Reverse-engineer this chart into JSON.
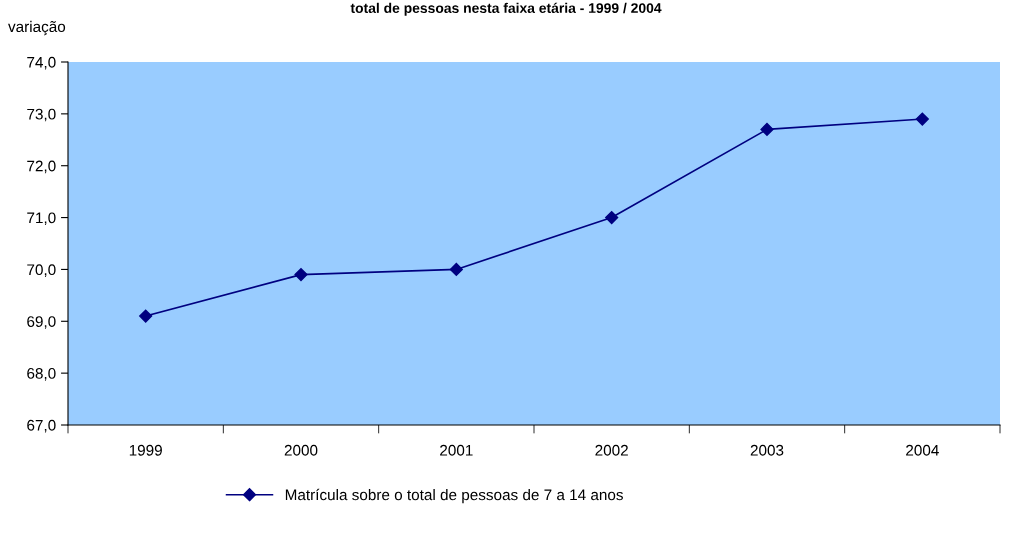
{
  "chart_data": {
    "type": "line",
    "title": "total de pessoas nesta faixa etária - 1999 / 2004",
    "ylabel": "variação",
    "categories": [
      "1999",
      "2000",
      "2001",
      "2002",
      "2003",
      "2004"
    ],
    "series": [
      {
        "name": "Matrícula sobre o total de pessoas de 7 a 14 anos",
        "color": "#000080",
        "values": [
          69.1,
          69.9,
          70.0,
          71.0,
          72.7,
          72.9
        ]
      }
    ],
    "ylim": [
      67,
      74
    ],
    "yticks": [
      {
        "value": 67,
        "label": "67,0"
      },
      {
        "value": 68,
        "label": "68,0"
      },
      {
        "value": 69,
        "label": "69,0"
      },
      {
        "value": 70,
        "label": "70,0"
      },
      {
        "value": 71,
        "label": "71,0"
      },
      {
        "value": 72,
        "label": "72,0"
      },
      {
        "value": 73,
        "label": "73,0"
      },
      {
        "value": 74,
        "label": "74,0"
      }
    ],
    "grid": false,
    "legend": "bottom",
    "marker": "diamond",
    "line_style": "solid"
  }
}
